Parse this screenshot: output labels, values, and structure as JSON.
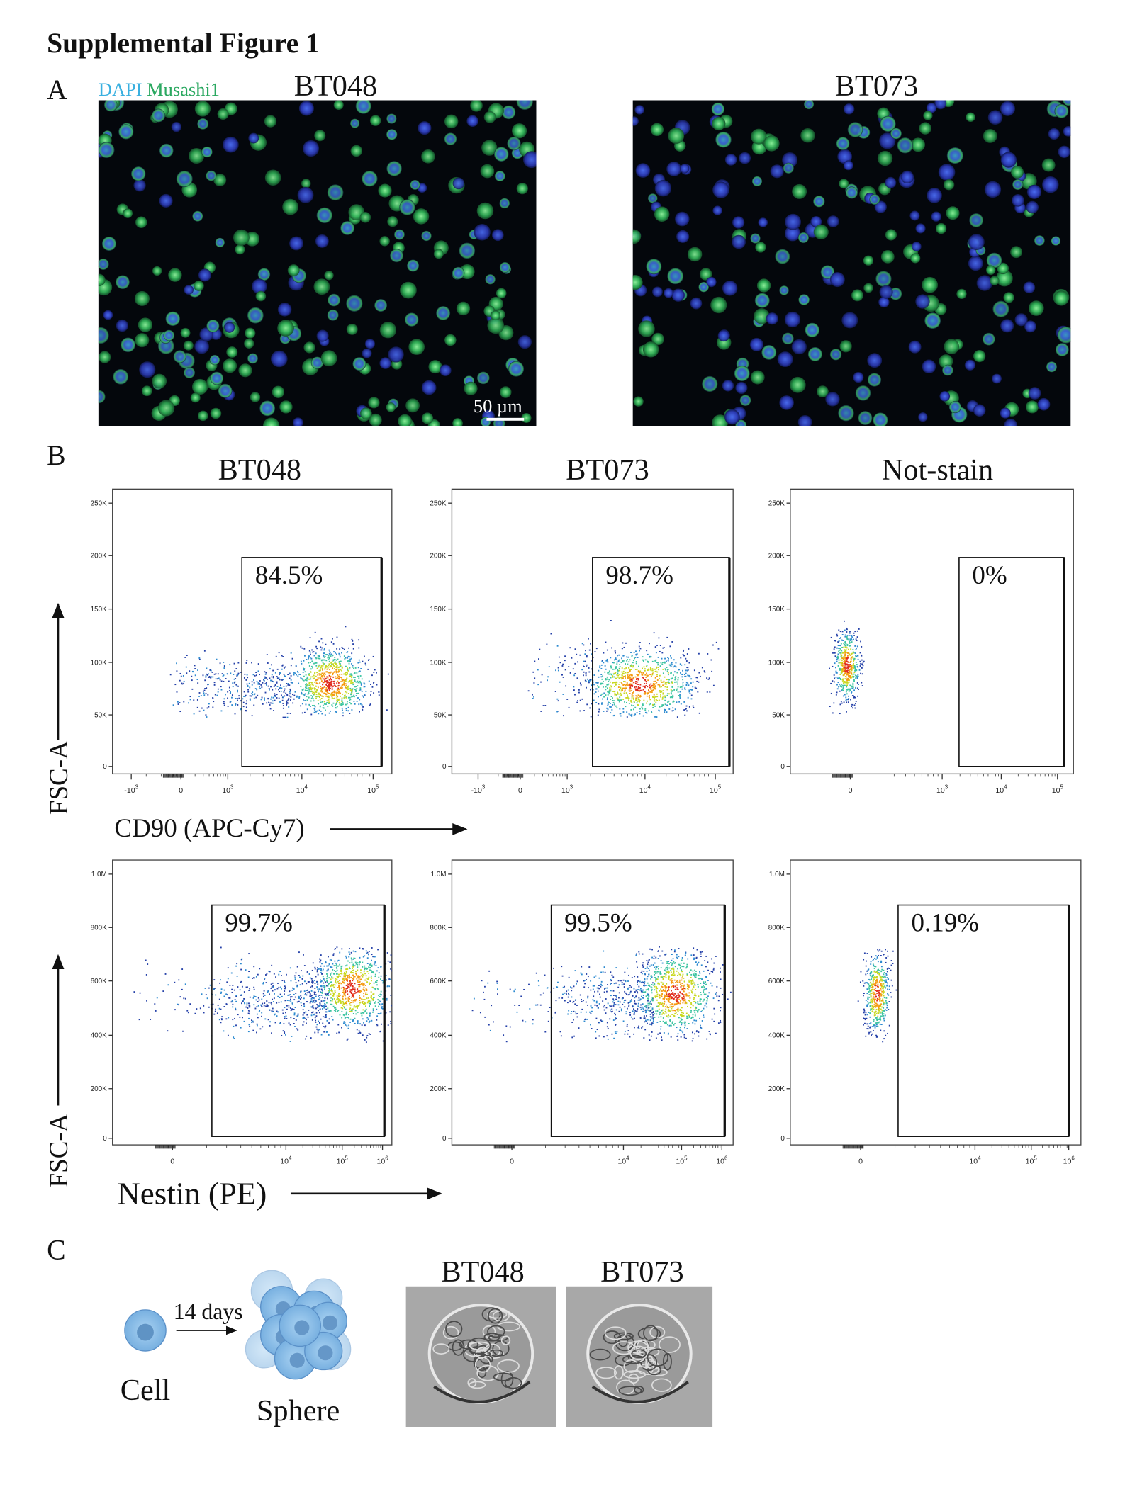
{
  "title": "Supplemental Figure 1",
  "panel_a": {
    "label": "A",
    "stains": [
      "DAPI",
      "Musashi1"
    ],
    "images": [
      {
        "title": "BT048"
      },
      {
        "title": "BT073"
      }
    ],
    "scale_bar": "50 µm"
  },
  "panel_b": {
    "label": "B",
    "columns": [
      "BT048",
      "BT073",
      "Not-stain"
    ],
    "rows": [
      {
        "y_label": "FSC-A",
        "x_label": "CD90 (APC-Cy7)",
        "yticks": [
          "250K",
          "200K",
          "150K",
          "100K",
          "50K",
          "0"
        ],
        "plots": [
          {
            "gate": "84.5%",
            "xticks": [
              {
                "text": "-10",
                "sup": "3"
              },
              "0",
              {
                "text": "10",
                "sup": "3"
              },
              {
                "text": "10",
                "sup": "4"
              },
              {
                "text": "10",
                "sup": "5"
              }
            ]
          },
          {
            "gate": "98.7%",
            "xticks": [
              {
                "text": "-10",
                "sup": "3"
              },
              "0",
              {
                "text": "10",
                "sup": "3"
              },
              {
                "text": "10",
                "sup": "4"
              },
              {
                "text": "10",
                "sup": "5"
              }
            ]
          },
          {
            "gate": "0%",
            "xticks": [
              "0",
              {
                "text": "10",
                "sup": "3"
              },
              {
                "text": "10",
                "sup": "4"
              },
              {
                "text": "10",
                "sup": "5"
              }
            ]
          }
        ]
      },
      {
        "y_label": "FSC-A",
        "x_label": "Nestin (PE)",
        "yticks": [
          "1.0M",
          "800K",
          "600K",
          "400K",
          "200K",
          "0"
        ],
        "plots": [
          {
            "gate": "99.7%",
            "xticks": [
              "0",
              {
                "text": "10",
                "sup": "4"
              },
              {
                "text": "10",
                "sup": "5"
              },
              {
                "text": "10",
                "sup": "6"
              }
            ]
          },
          {
            "gate": "99.5%",
            "xticks": [
              "0",
              {
                "text": "10",
                "sup": "4"
              },
              {
                "text": "10",
                "sup": "5"
              },
              {
                "text": "10",
                "sup": "6"
              }
            ]
          },
          {
            "gate": "0.19%",
            "xticks": [
              "0",
              {
                "text": "10",
                "sup": "4"
              },
              {
                "text": "10",
                "sup": "5"
              },
              {
                "text": "10",
                "sup": "6"
              }
            ]
          }
        ]
      }
    ]
  },
  "panel_c": {
    "label": "C",
    "interval": "14 days",
    "cell": "Cell",
    "sphere": "Sphere",
    "images": [
      {
        "title": "BT048"
      },
      {
        "title": "BT073"
      }
    ]
  }
}
